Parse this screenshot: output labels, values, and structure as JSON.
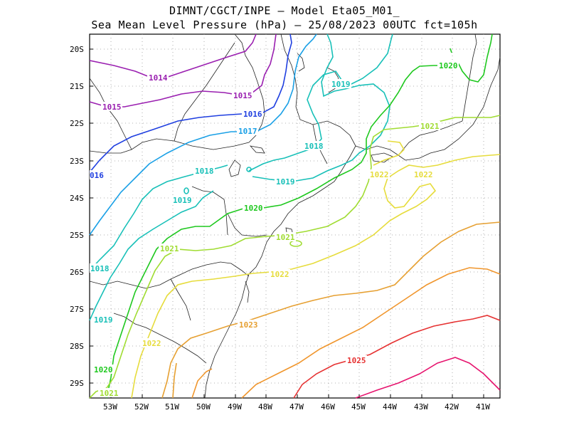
{
  "title_line1": "DIMNT/CGCT/INPE –  Model Eta05_M01_",
  "title_line2": "Sea Mean Level Pressure (hPa) – 25/08/2023 00UTC fct=105h",
  "lat_labels": [
    "20S",
    "21S",
    "22S",
    "23S",
    "24S",
    "25S",
    "26S",
    "27S",
    "28S",
    "29S"
  ],
  "lon_labels": [
    "53W",
    "52W",
    "51W",
    "50W",
    "49W",
    "48W",
    "47W",
    "46W",
    "45W",
    "44W",
    "43W",
    "42W",
    "41W"
  ],
  "contour_labels": [
    {
      "text": "1014",
      "color": "#9a1fb0"
    },
    {
      "text": "1015",
      "color": "#9a1fb0"
    },
    {
      "text": "1015",
      "color": "#9a1fb0"
    },
    {
      "text": "1016",
      "color": "#1f3fe0"
    },
    {
      "text": "016",
      "color": "#1f3fe0"
    },
    {
      "text": "1017",
      "color": "#1aa0e6"
    },
    {
      "text": "1018",
      "color": "#18c0b8"
    },
    {
      "text": "1018",
      "color": "#18c0b8"
    },
    {
      "text": "1018",
      "color": "#18c0b8"
    },
    {
      "text": "1019",
      "color": "#18c0b8"
    },
    {
      "text": "1019",
      "color": "#18c0b8"
    },
    {
      "text": "1019",
      "color": "#18c0b8"
    },
    {
      "text": "1019",
      "color": "#18c0b8"
    },
    {
      "text": "1020",
      "color": "#1ec81e"
    },
    {
      "text": "1020",
      "color": "#1ec81e"
    },
    {
      "text": "1020",
      "color": "#1ec81e"
    },
    {
      "text": "1021",
      "color": "#a0dc32"
    },
    {
      "text": "1021",
      "color": "#a0dc32"
    },
    {
      "text": "1021",
      "color": "#a0dc32"
    },
    {
      "text": "1021",
      "color": "#a0dc32"
    },
    {
      "text": "1022",
      "color": "#e6dc3c"
    },
    {
      "text": "1022",
      "color": "#e6dc3c"
    },
    {
      "text": "1022",
      "color": "#e6dc3c"
    },
    {
      "text": "1022",
      "color": "#e6dc3c"
    },
    {
      "text": "1023",
      "color": "#e6a032"
    },
    {
      "text": "1025",
      "color": "#e63232"
    }
  ],
  "colors": {
    "1014": "#9a1fb0",
    "1015": "#9a1fb0",
    "1016": "#1f3fe0",
    "1017": "#1aa0e6",
    "1018": "#18c0b8",
    "1019": "#18c0b8",
    "1020": "#1ec81e",
    "1021": "#a0dc32",
    "1022": "#e6dc3c",
    "1023": "#e6a032",
    "1024": "#f0962d",
    "1025": "#e63232",
    "1026": "#e6146e"
  }
}
